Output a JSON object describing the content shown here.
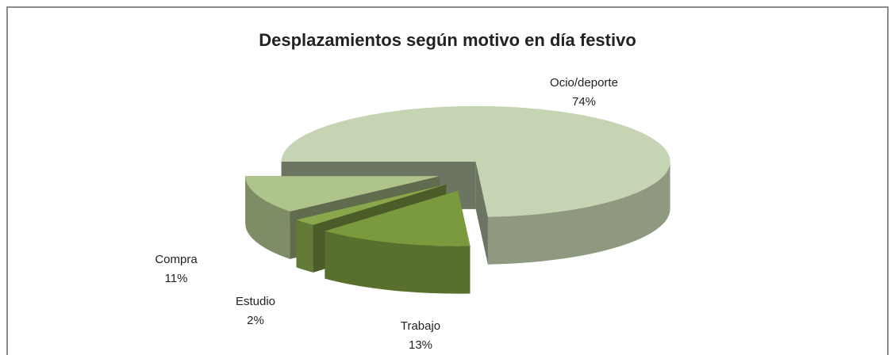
{
  "chart_data": {
    "type": "pie3d",
    "title": "Desplazamientos según motivo en día festivo",
    "categories": [
      "Ocio/deporte",
      "Trabajo",
      "Estudio",
      "Compra"
    ],
    "values": [
      74,
      13,
      2,
      11
    ],
    "value_labels": [
      "74%",
      "13%",
      "2%",
      "11%"
    ],
    "colors": [
      "#c5d4b2",
      "#7b9a3d",
      "#8aa84b",
      "#afc48c"
    ]
  }
}
